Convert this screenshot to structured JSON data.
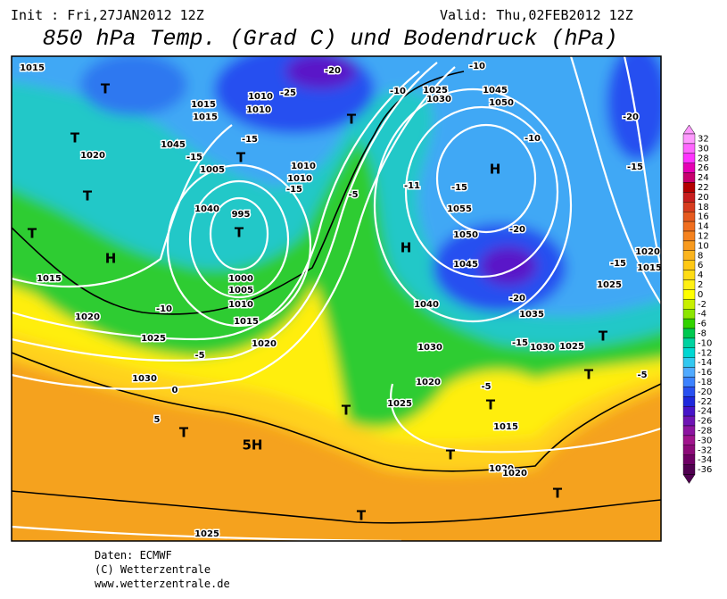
{
  "header": {
    "init": "Init : Fri,27JAN2012 12Z",
    "valid": "Valid: Thu,02FEB2012 12Z",
    "title": "850 hPa Temp. (Grad C) und Bodendruck (hPa)"
  },
  "footer": [
    "Daten: ECMWF",
    "(C) Wetterzentrale",
    "www.wetterzentrale.de"
  ],
  "colorbar": {
    "levels": [
      32,
      30,
      28,
      26,
      24,
      22,
      20,
      18,
      16,
      14,
      12,
      10,
      8,
      6,
      4,
      2,
      0,
      -2,
      -4,
      -6,
      -8,
      -10,
      -12,
      -14,
      -16,
      -18,
      -20,
      -22,
      -24,
      -26,
      -28,
      -30,
      -32,
      -34,
      -36
    ],
    "colors": [
      "#ff99ff",
      "#ff66ff",
      "#ff33ff",
      "#e600b4",
      "#c8006e",
      "#b40000",
      "#c81e1e",
      "#d73c1e",
      "#e65a1e",
      "#f06e1e",
      "#f5821e",
      "#f89a1e",
      "#fbb41e",
      "#ffc814",
      "#ffdc14",
      "#fff014",
      "#ffff00",
      "#c8f000",
      "#8ce600",
      "#32d200",
      "#00c850",
      "#00d2a0",
      "#00d7d2",
      "#32c8f0",
      "#50aaff",
      "#3c82ff",
      "#2850f0",
      "#1e28dc",
      "#4614c8",
      "#6e14b4",
      "#8c14a0",
      "#a0148c",
      "#8c0a78",
      "#6e0064",
      "#500050"
    ]
  },
  "map_labels": [
    "1015",
    "T",
    "T",
    "1020",
    "T",
    "T",
    "H",
    "1015",
    "1020",
    "-10",
    "1025",
    "-5",
    "1030",
    "0",
    "5",
    "T",
    "5H",
    "T",
    "1025",
    "995",
    "T",
    "1000",
    "1005",
    "1010",
    "1015",
    "1020",
    "1040",
    "1045",
    "1005",
    "1010",
    "1010",
    "-25",
    "-20",
    "1015",
    "1015",
    "-15",
    "-15",
    "T",
    "1010",
    "1010",
    "-15",
    "-5",
    "-11",
    "-10",
    "1025",
    "1030",
    "1045",
    "1050",
    "-10",
    "-10",
    "H",
    "-15",
    "1055",
    "-20",
    "1050",
    "1045",
    "-20",
    "1040",
    "1035",
    "-15",
    "1030",
    "1030",
    "1025",
    "1020",
    "-5",
    "T",
    "1015",
    "1025",
    "T",
    "1020",
    "1020",
    "T",
    "T",
    "T",
    "1025",
    "1020",
    "1015",
    "-15",
    "-15",
    "-20",
    "T",
    "-5",
    "H",
    "T"
  ]
}
